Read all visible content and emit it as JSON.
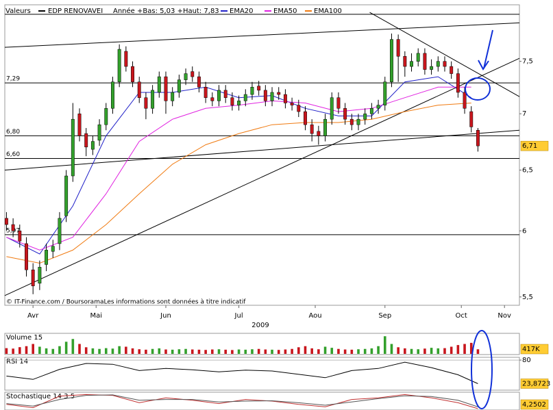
{
  "chart_data": [
    {
      "type": "candlestick",
      "label": "Valeurs",
      "title": "EDP RENOVAVEI",
      "subtitle": "Année +Bas: 5,03 +Haut: 7,83",
      "footer": "© IT-Finance.com / BoursoramaLes informations sont données à titre indicatif",
      "up_color": "#33a02c",
      "down_color": "#c8161d",
      "x": [
        0,
        2,
        4,
        6,
        8,
        10,
        12,
        14,
        16,
        18,
        20,
        22,
        24,
        26,
        28,
        30,
        32,
        34,
        36,
        38,
        40,
        42,
        44,
        46,
        48,
        50,
        52,
        54,
        56,
        58,
        60,
        62,
        64,
        66,
        68,
        70,
        72,
        74,
        76,
        78,
        80,
        82,
        84,
        86,
        88,
        90,
        92,
        94,
        96,
        98,
        100,
        102,
        104,
        106,
        108,
        110,
        112,
        114,
        116,
        118,
        120,
        122,
        124,
        126,
        128,
        130,
        132,
        134,
        136,
        138,
        140,
        142
      ],
      "open": [
        6.1,
        6.05,
        6.0,
        5.9,
        5.7,
        5.6,
        5.74,
        5.84,
        5.9,
        6.12,
        6.45,
        7.0,
        6.82,
        6.68,
        6.76,
        6.9,
        7.05,
        7.3,
        7.6,
        7.45,
        7.3,
        7.15,
        7.05,
        7.2,
        7.35,
        7.12,
        7.2,
        7.32,
        7.4,
        7.35,
        7.25,
        7.15,
        7.12,
        7.22,
        7.15,
        7.08,
        7.12,
        7.18,
        7.26,
        7.22,
        7.12,
        7.2,
        7.18,
        7.1,
        7.08,
        7.02,
        6.9,
        6.84,
        6.8,
        6.95,
        7.15,
        7.05,
        6.95,
        6.9,
        6.95,
        7.0,
        7.05,
        7.08,
        7.3,
        7.72,
        7.55,
        7.45,
        7.5,
        7.58,
        7.42,
        7.45,
        7.5,
        7.45,
        7.38,
        7.2,
        7.02,
        6.85
      ],
      "high": [
        6.15,
        6.1,
        6.05,
        5.95,
        5.75,
        5.77,
        5.9,
        5.93,
        6.15,
        6.5,
        7.1,
        7.05,
        6.87,
        6.8,
        6.95,
        7.1,
        7.35,
        7.67,
        7.65,
        7.5,
        7.35,
        7.2,
        7.27,
        7.4,
        7.4,
        7.25,
        7.37,
        7.43,
        7.45,
        7.4,
        7.3,
        7.2,
        7.27,
        7.27,
        7.2,
        7.17,
        7.23,
        7.3,
        7.31,
        7.27,
        7.25,
        7.25,
        7.23,
        7.15,
        7.13,
        7.07,
        6.95,
        6.89,
        7.0,
        7.2,
        7.2,
        7.1,
        7.0,
        7.0,
        7.05,
        7.1,
        7.13,
        7.35,
        7.78,
        7.77,
        7.6,
        7.58,
        7.63,
        7.63,
        7.52,
        7.55,
        7.55,
        7.5,
        7.43,
        7.25,
        7.07,
        6.87
      ],
      "low": [
        6.0,
        5.95,
        5.87,
        5.65,
        5.52,
        5.55,
        5.69,
        5.79,
        5.85,
        6.07,
        6.4,
        6.75,
        6.62,
        6.63,
        6.71,
        6.85,
        7.0,
        7.25,
        7.4,
        7.25,
        7.1,
        6.95,
        7.0,
        7.15,
        7.0,
        7.07,
        7.15,
        7.27,
        7.3,
        7.2,
        7.1,
        7.07,
        7.07,
        7.1,
        7.03,
        7.03,
        7.07,
        7.13,
        7.17,
        7.07,
        7.07,
        7.13,
        7.05,
        7.03,
        6.97,
        6.85,
        6.75,
        6.72,
        6.75,
        6.9,
        7.0,
        6.9,
        6.85,
        6.85,
        6.9,
        6.95,
        7.0,
        7.03,
        7.25,
        7.3,
        7.35,
        7.4,
        7.45,
        7.37,
        7.37,
        7.4,
        7.4,
        7.33,
        7.15,
        7.0,
        6.83,
        6.66
      ],
      "close": [
        6.05,
        6.0,
        5.92,
        5.7,
        5.58,
        5.72,
        5.85,
        5.88,
        6.1,
        6.45,
        6.95,
        6.8,
        6.7,
        6.75,
        6.9,
        7.05,
        7.3,
        7.62,
        7.45,
        7.3,
        7.15,
        7.05,
        7.22,
        7.35,
        7.12,
        7.2,
        7.32,
        7.38,
        7.35,
        7.25,
        7.15,
        7.12,
        7.22,
        7.15,
        7.08,
        7.12,
        7.18,
        7.25,
        7.22,
        7.12,
        7.2,
        7.18,
        7.1,
        7.08,
        7.02,
        6.9,
        6.82,
        6.8,
        6.95,
        7.15,
        7.05,
        6.95,
        6.9,
        6.95,
        7.0,
        7.05,
        7.08,
        7.3,
        7.72,
        7.55,
        7.45,
        7.5,
        7.58,
        7.42,
        7.45,
        7.5,
        7.45,
        7.38,
        7.2,
        7.05,
        6.88,
        6.71
      ],
      "series": [
        {
          "name": "EMA20",
          "color": "#1f1fc8",
          "x": [
            0,
            10,
            20,
            30,
            40,
            50,
            60,
            70,
            80,
            90,
            100,
            110,
            120,
            130,
            140
          ],
          "values": [
            5.95,
            5.82,
            6.2,
            6.8,
            7.2,
            7.2,
            7.25,
            7.15,
            7.17,
            7.05,
            6.98,
            6.98,
            7.3,
            7.35,
            7.15
          ]
        },
        {
          "name": "EMA50",
          "color": "#e020e0",
          "x": [
            0,
            10,
            20,
            30,
            40,
            50,
            60,
            70,
            80,
            90,
            100,
            110,
            120,
            130,
            140
          ],
          "values": [
            5.95,
            5.85,
            5.95,
            6.3,
            6.75,
            6.95,
            7.05,
            7.08,
            7.12,
            7.1,
            7.02,
            7.05,
            7.15,
            7.25,
            7.25
          ]
        },
        {
          "name": "EMA100",
          "color": "#f07a10",
          "x": [
            0,
            10,
            20,
            30,
            40,
            50,
            60,
            70,
            80,
            90,
            100,
            110,
            120,
            130,
            140
          ],
          "values": [
            5.8,
            5.75,
            5.85,
            6.05,
            6.3,
            6.55,
            6.72,
            6.82,
            6.9,
            6.92,
            6.92,
            6.95,
            7.02,
            7.08,
            7.1
          ]
        }
      ],
      "trendlines": [
        {
          "x": [
            -0.5,
            154.5
          ],
          "values": [
            7.64,
            7.89
          ]
        },
        {
          "x": [
            -0.5,
            154.5
          ],
          "values": [
            7.98,
            7.98
          ]
        },
        {
          "x": [
            -0.5,
            154.5
          ],
          "values": [
            6.5,
            6.85
          ]
        },
        {
          "x": [
            -0.5,
            154.5
          ],
          "values": [
            5.51,
            7.53
          ]
        },
        {
          "x": [
            109.4,
            154.5
          ],
          "values": [
            8.0,
            7.16
          ]
        }
      ],
      "levels": [
        {
          "value": 7.29,
          "label": "7,29"
        },
        {
          "value": 6.8,
          "label": "6,80"
        },
        {
          "value": 6.6,
          "label": "6,60"
        },
        {
          "value": 5.97,
          "label": "5,97"
        }
      ],
      "last_value": {
        "value": 6.71,
        "label": "6,71"
      },
      "xlim": [
        -0.5,
        154.5
      ],
      "xticks": [
        {
          "value": 8,
          "label": "Avr"
        },
        {
          "value": 27,
          "label": "Mai"
        },
        {
          "value": 48,
          "label": "Jun"
        },
        {
          "value": 70,
          "label": "Jul"
        },
        {
          "value": 93,
          "label": "Aou"
        },
        {
          "value": 114,
          "label": "Sep"
        },
        {
          "value": 137,
          "label": "Oct"
        },
        {
          "value": 150,
          "label": "Nov"
        }
      ],
      "xlabel": "2009",
      "ylim": [
        5.44,
        8.08
      ],
      "log_scale": true,
      "yticks": [
        {
          "value": 7.5,
          "label": "7,5"
        },
        7,
        {
          "value": 6.5,
          "label": "6,5"
        },
        6,
        {
          "value": 5.5,
          "label": "5,5"
        }
      ]
    },
    {
      "type": "bar",
      "title": "Volume 15",
      "x": [
        0,
        2,
        4,
        6,
        8,
        10,
        12,
        14,
        16,
        18,
        20,
        22,
        24,
        26,
        28,
        30,
        32,
        34,
        36,
        38,
        40,
        42,
        44,
        46,
        48,
        50,
        52,
        54,
        56,
        58,
        60,
        62,
        64,
        66,
        68,
        70,
        72,
        74,
        76,
        78,
        80,
        82,
        84,
        86,
        88,
        90,
        92,
        94,
        96,
        98,
        100,
        102,
        104,
        106,
        108,
        110,
        112,
        114,
        116,
        118,
        120,
        122,
        124,
        126,
        128,
        130,
        132,
        134,
        136,
        138,
        140,
        142
      ],
      "values": [
        520,
        480,
        610,
        700,
        900,
        650,
        500,
        450,
        700,
        1100,
        1350,
        900,
        600,
        500,
        450,
        520,
        480,
        700,
        650,
        500,
        420,
        380,
        450,
        500,
        400,
        380,
        420,
        450,
        400,
        380,
        360,
        400,
        420,
        380,
        350,
        400,
        380,
        420,
        450,
        400,
        380,
        360,
        400,
        450,
        600,
        700,
        500,
        420,
        650,
        550,
        450,
        400,
        380,
        420,
        450,
        500,
        700,
        1600,
        900,
        600,
        500,
        450,
        420,
        480,
        550,
        500,
        520,
        650,
        800,
        900,
        1000,
        417
      ],
      "last_value": {
        "value": 417,
        "label": "417K"
      },
      "xlim": [
        -0.5,
        154.5
      ],
      "ylim": [
        0,
        1800
      ]
    },
    {
      "type": "line",
      "title": "RSI 14",
      "color": "#000000",
      "x": [
        0,
        8,
        16,
        24,
        32,
        40,
        48,
        56,
        64,
        72,
        80,
        88,
        96,
        104,
        112,
        120,
        128,
        136,
        142
      ],
      "values": [
        42,
        34,
        58,
        72,
        70,
        55,
        60,
        57,
        52,
        56,
        54,
        46,
        38,
        55,
        60,
        75,
        62,
        45,
        23.8723
      ],
      "last_value": {
        "value": 23.8723,
        "label": "23,8723"
      },
      "xlim": [
        -0.5,
        154.5
      ],
      "ylim": [
        10,
        85
      ],
      "yticks": [
        80
      ]
    },
    {
      "type": "line",
      "title": "Stochastique 14 3 5",
      "x": [
        0,
        8,
        16,
        24,
        32,
        40,
        48,
        56,
        64,
        72,
        80,
        88,
        96,
        104,
        112,
        120,
        128,
        136,
        142
      ],
      "series": [
        {
          "color": "#c03030",
          "values": [
            30,
            10,
            80,
            90,
            85,
            40,
            70,
            55,
            35,
            60,
            50,
            30,
            15,
            60,
            70,
            90,
            70,
            40,
            4.2502
          ]
        },
        {
          "color": "#555555",
          "values": [
            35,
            20,
            60,
            85,
            88,
            55,
            60,
            60,
            45,
            50,
            52,
            40,
            25,
            45,
            65,
            82,
            78,
            55,
            15
          ]
        }
      ],
      "last_value": {
        "value": 4.2502,
        "label": "4,2502"
      },
      "xlim": [
        -0.5,
        154.5
      ],
      "ylim": [
        0,
        100
      ]
    }
  ]
}
